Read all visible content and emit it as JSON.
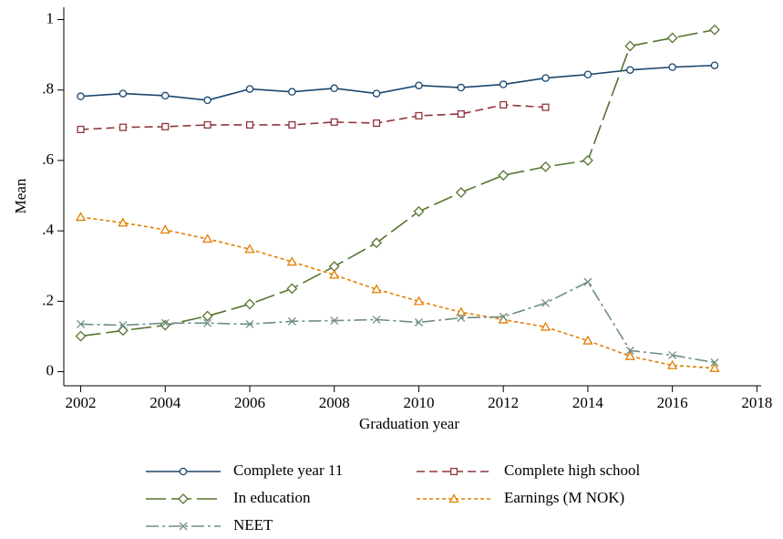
{
  "chart_data": {
    "type": "line",
    "x_label": "Graduation year",
    "y_label": "Mean",
    "x": [
      2002,
      2003,
      2004,
      2005,
      2006,
      2007,
      2008,
      2009,
      2010,
      2011,
      2012,
      2013,
      2014,
      2015,
      2016,
      2017
    ],
    "series": [
      {
        "name": "Complete year 11",
        "color": "#1a476f",
        "marker": "circle",
        "dash": "",
        "values": [
          0.782,
          0.79,
          0.784,
          0.771,
          0.803,
          0.795,
          0.805,
          0.79,
          0.813,
          0.807,
          0.816,
          0.834,
          0.844,
          0.857,
          0.865,
          0.87
        ]
      },
      {
        "name": "Complete high school",
        "color": "#90353b",
        "marker": "square",
        "dash": "9 5",
        "values": [
          0.688,
          0.694,
          0.696,
          0.701,
          0.701,
          0.701,
          0.709,
          0.706,
          0.727,
          0.732,
          0.758,
          0.751,
          null,
          null,
          null,
          null
        ]
      },
      {
        "name": "In education",
        "color": "#55752f",
        "marker": "diamond",
        "dash": "22 6",
        "values": [
          0.101,
          0.117,
          0.132,
          0.158,
          0.192,
          0.236,
          0.299,
          0.366,
          0.455,
          0.509,
          0.558,
          0.582,
          0.6,
          0.925,
          0.948,
          0.971
        ]
      },
      {
        "name": "Earnings (M NOK)",
        "color": "#e37e00",
        "marker": "triangle",
        "dash": "4 3",
        "values": [
          0.439,
          0.423,
          0.403,
          0.377,
          0.348,
          0.312,
          0.275,
          0.234,
          0.2,
          0.169,
          0.148,
          0.127,
          0.088,
          0.044,
          0.018,
          0.01
        ]
      },
      {
        "name": "NEET",
        "color": "#6e8e84",
        "marker": "x",
        "dash": "14 4 3 4",
        "values": [
          0.135,
          0.132,
          0.138,
          0.138,
          0.135,
          0.143,
          0.145,
          0.148,
          0.14,
          0.153,
          0.156,
          0.195,
          0.255,
          0.06,
          0.047,
          0.026
        ]
      }
    ],
    "xlim": [
      2001.6,
      2018.1
    ],
    "xticks": [
      2002,
      2004,
      2006,
      2008,
      2010,
      2012,
      2014,
      2016,
      2018
    ],
    "ylim": [
      -0.04,
      1.035
    ],
    "yticks": [
      0,
      {
        "value": 0.2,
        "label": ".2"
      },
      {
        "value": 0.4,
        "label": ".4"
      },
      {
        "value": 0.6,
        "label": ".6"
      },
      {
        "value": 0.8,
        "label": ".8"
      },
      1
    ],
    "grid": false,
    "legend": "bottom"
  }
}
